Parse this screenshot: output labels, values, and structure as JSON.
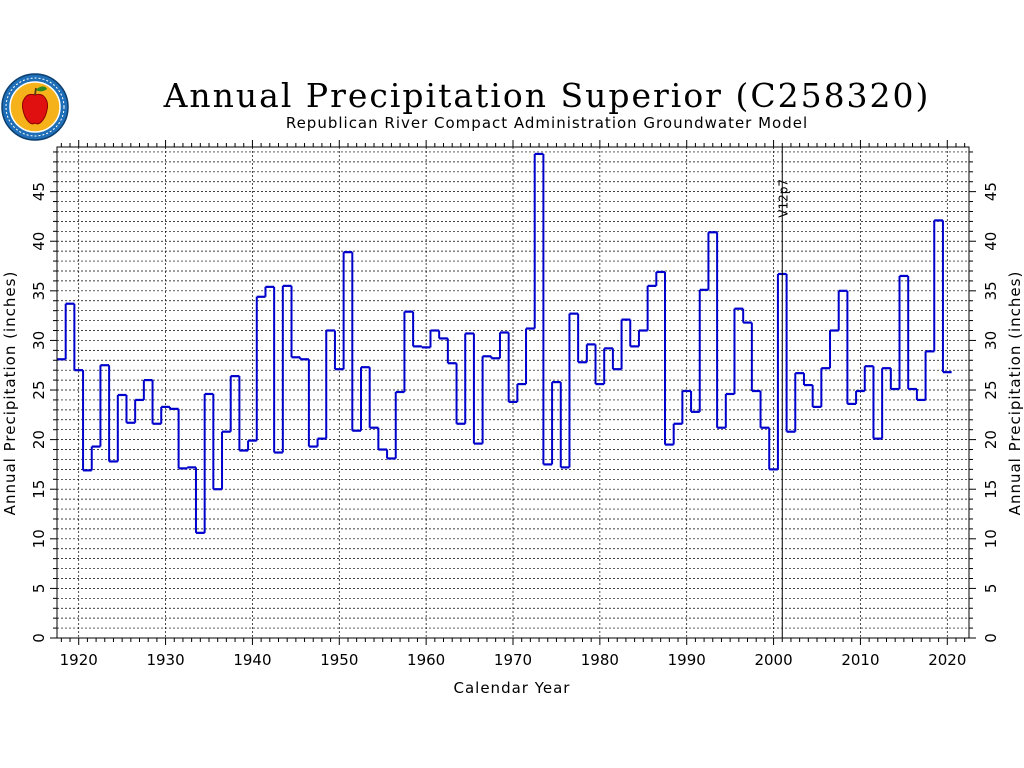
{
  "colors": {
    "series": "#0000cc",
    "axis": "#000000",
    "grid": "#000000",
    "logo_ring": "#1f6fb8",
    "logo_inner": "#f6b21a",
    "logo_apple": "#e01010",
    "logo_leaf": "#2d8a1f"
  },
  "logo": {
    "icon": "apple-seal-logo"
  },
  "chart_data": {
    "type": "line",
    "style": "step",
    "title": "Annual Precipitation Superior (C258320)",
    "subtitle": "Republican River Compact Administration Groundwater Model",
    "xlabel": "Calendar Year",
    "ylabel": "Annual Precipitation (inches)",
    "ylabel_right": "Annual Precipitation (inches)",
    "xlim": [
      1917.5,
      2022.5
    ],
    "ylim": [
      0,
      49.5
    ],
    "x_ticks": [
      1920,
      1930,
      1940,
      1950,
      1960,
      1970,
      1980,
      1990,
      2000,
      2010,
      2020
    ],
    "y_ticks": [
      0,
      5,
      10,
      15,
      20,
      25,
      30,
      35,
      40,
      45
    ],
    "grid": true,
    "grid_minor_y": 1,
    "annotation": {
      "x": 2001,
      "label": "V12p7"
    },
    "series": [
      {
        "x": [
          1918,
          1919,
          1920,
          1921,
          1922,
          1923,
          1924,
          1925,
          1926,
          1927,
          1928,
          1929,
          1930,
          1931,
          1932,
          1933,
          1934,
          1935,
          1936,
          1937,
          1938,
          1939,
          1940,
          1941,
          1942,
          1943,
          1944,
          1945,
          1946,
          1947,
          1948,
          1949,
          1950,
          1951,
          1952,
          1953,
          1954,
          1955,
          1956,
          1957,
          1958,
          1959,
          1960,
          1961,
          1962,
          1963,
          1964,
          1965,
          1966,
          1967,
          1968,
          1969,
          1970,
          1971,
          1972,
          1973,
          1974,
          1975,
          1976,
          1977,
          1978,
          1979,
          1980,
          1981,
          1982,
          1983,
          1984,
          1985,
          1986,
          1987,
          1988,
          1989,
          1990,
          1991,
          1992,
          1993,
          1994,
          1995,
          1996,
          1997,
          1998,
          1999,
          2000,
          2001,
          2002,
          2003,
          2004,
          2005,
          2006,
          2007,
          2008,
          2009,
          2010,
          2011,
          2012,
          2013,
          2014,
          2015,
          2016,
          2017,
          2018,
          2019,
          2020
        ],
        "values": [
          28.1,
          33.7,
          27.0,
          16.9,
          19.3,
          27.5,
          17.8,
          24.5,
          21.7,
          24.0,
          26.0,
          21.6,
          23.3,
          23.1,
          17.1,
          17.2,
          10.6,
          24.6,
          15.0,
          20.8,
          26.4,
          18.9,
          19.9,
          34.4,
          35.4,
          18.7,
          35.5,
          28.3,
          28.1,
          19.3,
          20.1,
          31.0,
          27.1,
          38.9,
          20.9,
          27.3,
          21.2,
          19.0,
          18.1,
          24.8,
          32.9,
          29.4,
          29.3,
          31.0,
          30.2,
          27.7,
          21.6,
          30.7,
          19.6,
          28.4,
          28.2,
          30.8,
          23.8,
          25.6,
          31.2,
          48.8,
          17.5,
          25.8,
          17.2,
          32.7,
          27.8,
          29.6,
          25.6,
          29.2,
          27.1,
          32.1,
          29.4,
          31.0,
          35.5,
          36.9,
          19.5,
          21.6,
          24.9,
          22.8,
          35.1,
          40.9,
          21.2,
          24.6,
          33.2,
          31.8,
          24.9,
          21.2,
          17.0,
          36.7,
          20.8,
          26.7,
          25.5,
          23.3,
          27.2,
          31.0,
          35.0,
          23.6,
          24.9,
          27.4,
          20.1,
          27.2,
          25.1,
          36.5,
          25.1,
          24.0,
          28.9,
          42.1,
          26.8
        ]
      }
    ]
  }
}
